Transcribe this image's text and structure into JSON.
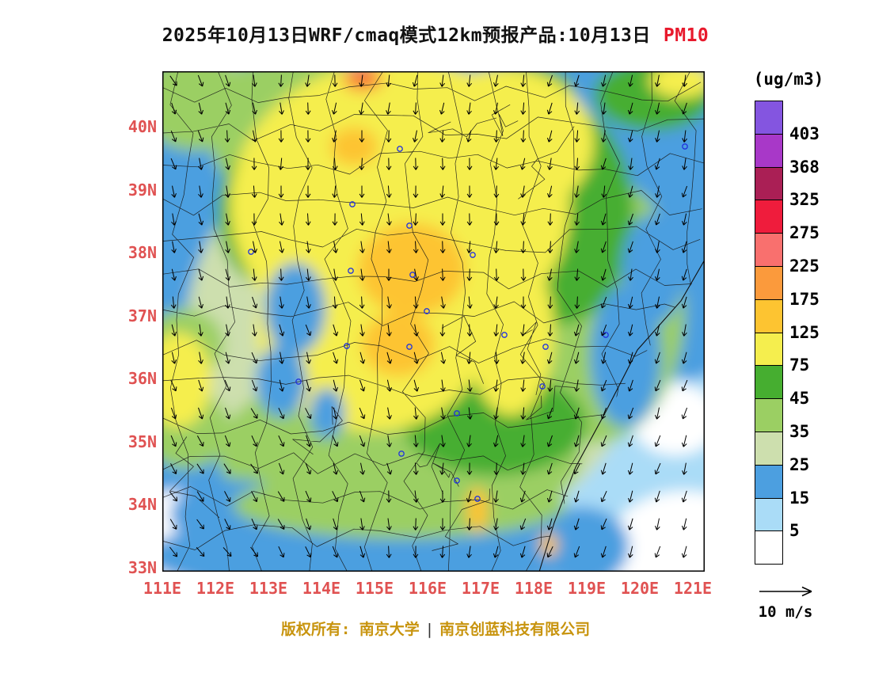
{
  "title": {
    "main": "2025年10月13日WRF/cmaq模式12km预报产品:10月13日",
    "species": "PM10"
  },
  "colorbar": {
    "units": "(ug/m3)",
    "labels": [
      "403",
      "368",
      "325",
      "275",
      "225",
      "175",
      "125",
      "75",
      "45",
      "35",
      "25",
      "15",
      "5"
    ],
    "colors": [
      "#8455e0",
      "#a838c8",
      "#aa1f55",
      "#ef1c3c",
      "#f9706e",
      "#fb9a3c",
      "#fdc431",
      "#f5ee4e",
      "#46ae30",
      "#9bcf63",
      "#cddfae",
      "#4c9fe0",
      "#aadcf7",
      "#ffffff"
    ]
  },
  "axes": {
    "lat": [
      "40N",
      "39N",
      "38N",
      "37N",
      "36N",
      "35N",
      "34N",
      "33N"
    ],
    "lon": [
      "111E",
      "112E",
      "113E",
      "114E",
      "115E",
      "116E",
      "117E",
      "118E",
      "119E",
      "120E",
      "121E"
    ]
  },
  "wind_legend": {
    "label": "10 m/s"
  },
  "footer": {
    "left": "版权所有: 南京大学",
    "separator": "|",
    "right": "南京创蓝科技有限公司"
  },
  "chart_data": {
    "type": "heatmap",
    "title": "2025年10月13日WRF/cmaq模式12km预报产品:10月13日 PM10",
    "units": "ug/m3",
    "x_ticks": [
      "111E",
      "112E",
      "113E",
      "114E",
      "115E",
      "116E",
      "117E",
      "118E",
      "119E",
      "120E",
      "121E"
    ],
    "y_ticks": [
      "33N",
      "34N",
      "35N",
      "36N",
      "37N",
      "38N",
      "39N",
      "40N"
    ],
    "levels": [
      5,
      15,
      25,
      35,
      45,
      75,
      125,
      175,
      225,
      275,
      325,
      368,
      403
    ],
    "level_colors_top_to_bottom": [
      "#8455e0",
      "#a838c8",
      "#aa1f55",
      "#ef1c3c",
      "#f9706e",
      "#fb9a3c",
      "#fdc431",
      "#f5ee4e",
      "#46ae30",
      "#9bcf63",
      "#cddfae",
      "#4c9fe0",
      "#aadcf7",
      "#ffffff"
    ],
    "overlay": "wind vectors, reference arrow 10 m/s",
    "notable_features": [
      {
        "area": "central plain 114-117E, 36-40N",
        "pm10": "75-125 broad yellow field"
      },
      {
        "area": "cores near 115.5E 37.8N and 115.3E 36.8N",
        "pm10": "125-175"
      },
      {
        "area": "hotspot ~114.7E 40.8N (top edge)",
        "pm10": "175-275"
      },
      {
        "area": "small core ~116.8E 33.9N",
        "pm10": "125-175"
      },
      {
        "area": "eastern seas 118-121E",
        "pm10": "5-25 with whites <5"
      },
      {
        "area": "west band ~112-113E and south 33-35N",
        "pm10": "15-45"
      }
    ]
  }
}
